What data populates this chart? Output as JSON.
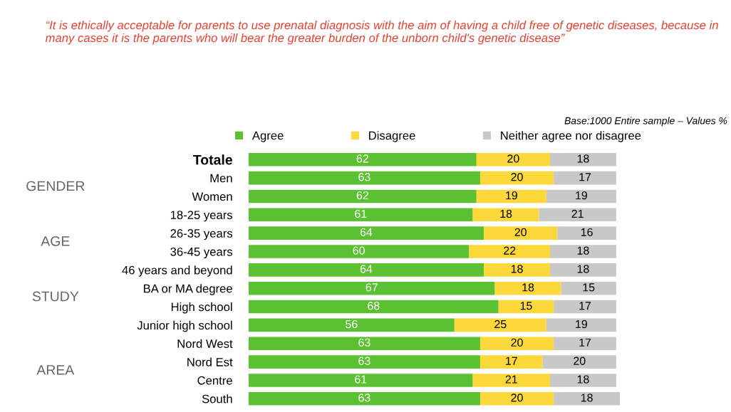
{
  "chart_data": {
    "type": "bar",
    "orientation": "horizontal",
    "stacked": true,
    "data_labels": true,
    "legend": "top",
    "grid": false,
    "title": "“It is ethically acceptable for parents to use prenatal diagnosis with the aim of having a child free of genetic diseases, because in many cases it is the parents who will bear the greater burden of the unborn child's genetic disease”",
    "categories": [
      "Totale",
      "Men",
      "Women",
      "18-25 years",
      "26-35 years",
      "36-45 years",
      "46 years and beyond",
      "BA or MA degree",
      "High school",
      "Junior high school",
      "Nord West",
      "Nord Est",
      "Centre",
      "South"
    ],
    "series": [
      {
        "name": "Agree",
        "color": "#5cc132",
        "values": [
          62,
          63,
          62,
          61,
          64,
          60,
          64,
          67,
          68,
          56,
          63,
          63,
          61,
          63
        ]
      },
      {
        "name": "Disagree",
        "color": "#fdd83a",
        "values": [
          20,
          20,
          19,
          18,
          20,
          22,
          18,
          18,
          15,
          25,
          20,
          17,
          21,
          20
        ]
      },
      {
        "name": "Neither agree nor disagree",
        "color": "#c8c8c8",
        "values": [
          18,
          17,
          19,
          21,
          16,
          18,
          18,
          15,
          17,
          19,
          17,
          20,
          18,
          18
        ]
      }
    ],
    "annotations": [
      "Base:1000 Entire sample – Values %",
      "GENDER",
      "AGE",
      "STUDY",
      "AREA"
    ]
  }
}
